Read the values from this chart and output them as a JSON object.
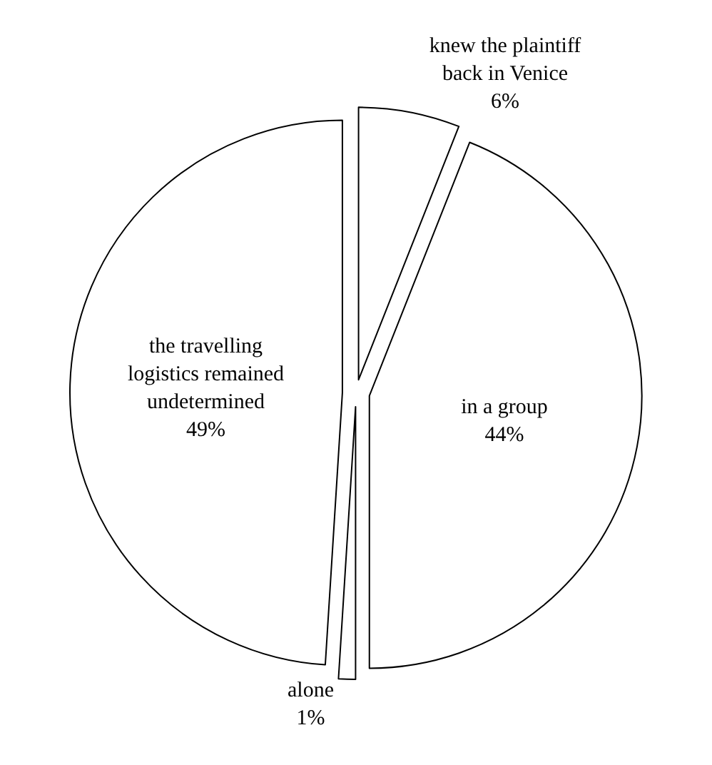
{
  "chart_data": {
    "type": "pie",
    "categories": [
      "knew the plaintiff back in Venice",
      "in a group",
      "alone",
      "the travelling logistics remained undetermined"
    ],
    "values": [
      6,
      44,
      1,
      49
    ],
    "colors": [
      "#ffffff",
      "#ffffff",
      "#ffffff",
      "#ffffff"
    ],
    "value_labels": [
      "6%",
      "44%",
      "1%",
      "49%"
    ]
  }
}
